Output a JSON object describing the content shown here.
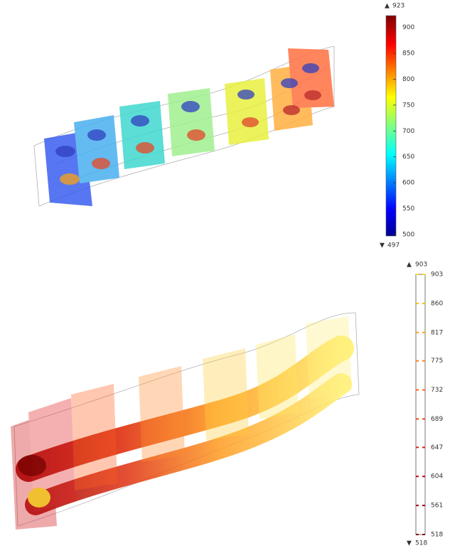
{
  "top_figure": {
    "colorbar": {
      "max": 923,
      "min": 497,
      "ticks": [
        900,
        850,
        800,
        750,
        700,
        650,
        600,
        550,
        500
      ]
    }
  },
  "bottom_figure": {
    "colorbar": {
      "max": 903,
      "min": 518,
      "ticks": [
        903,
        860,
        817,
        775,
        732,
        689,
        647,
        604,
        561,
        518
      ]
    }
  }
}
